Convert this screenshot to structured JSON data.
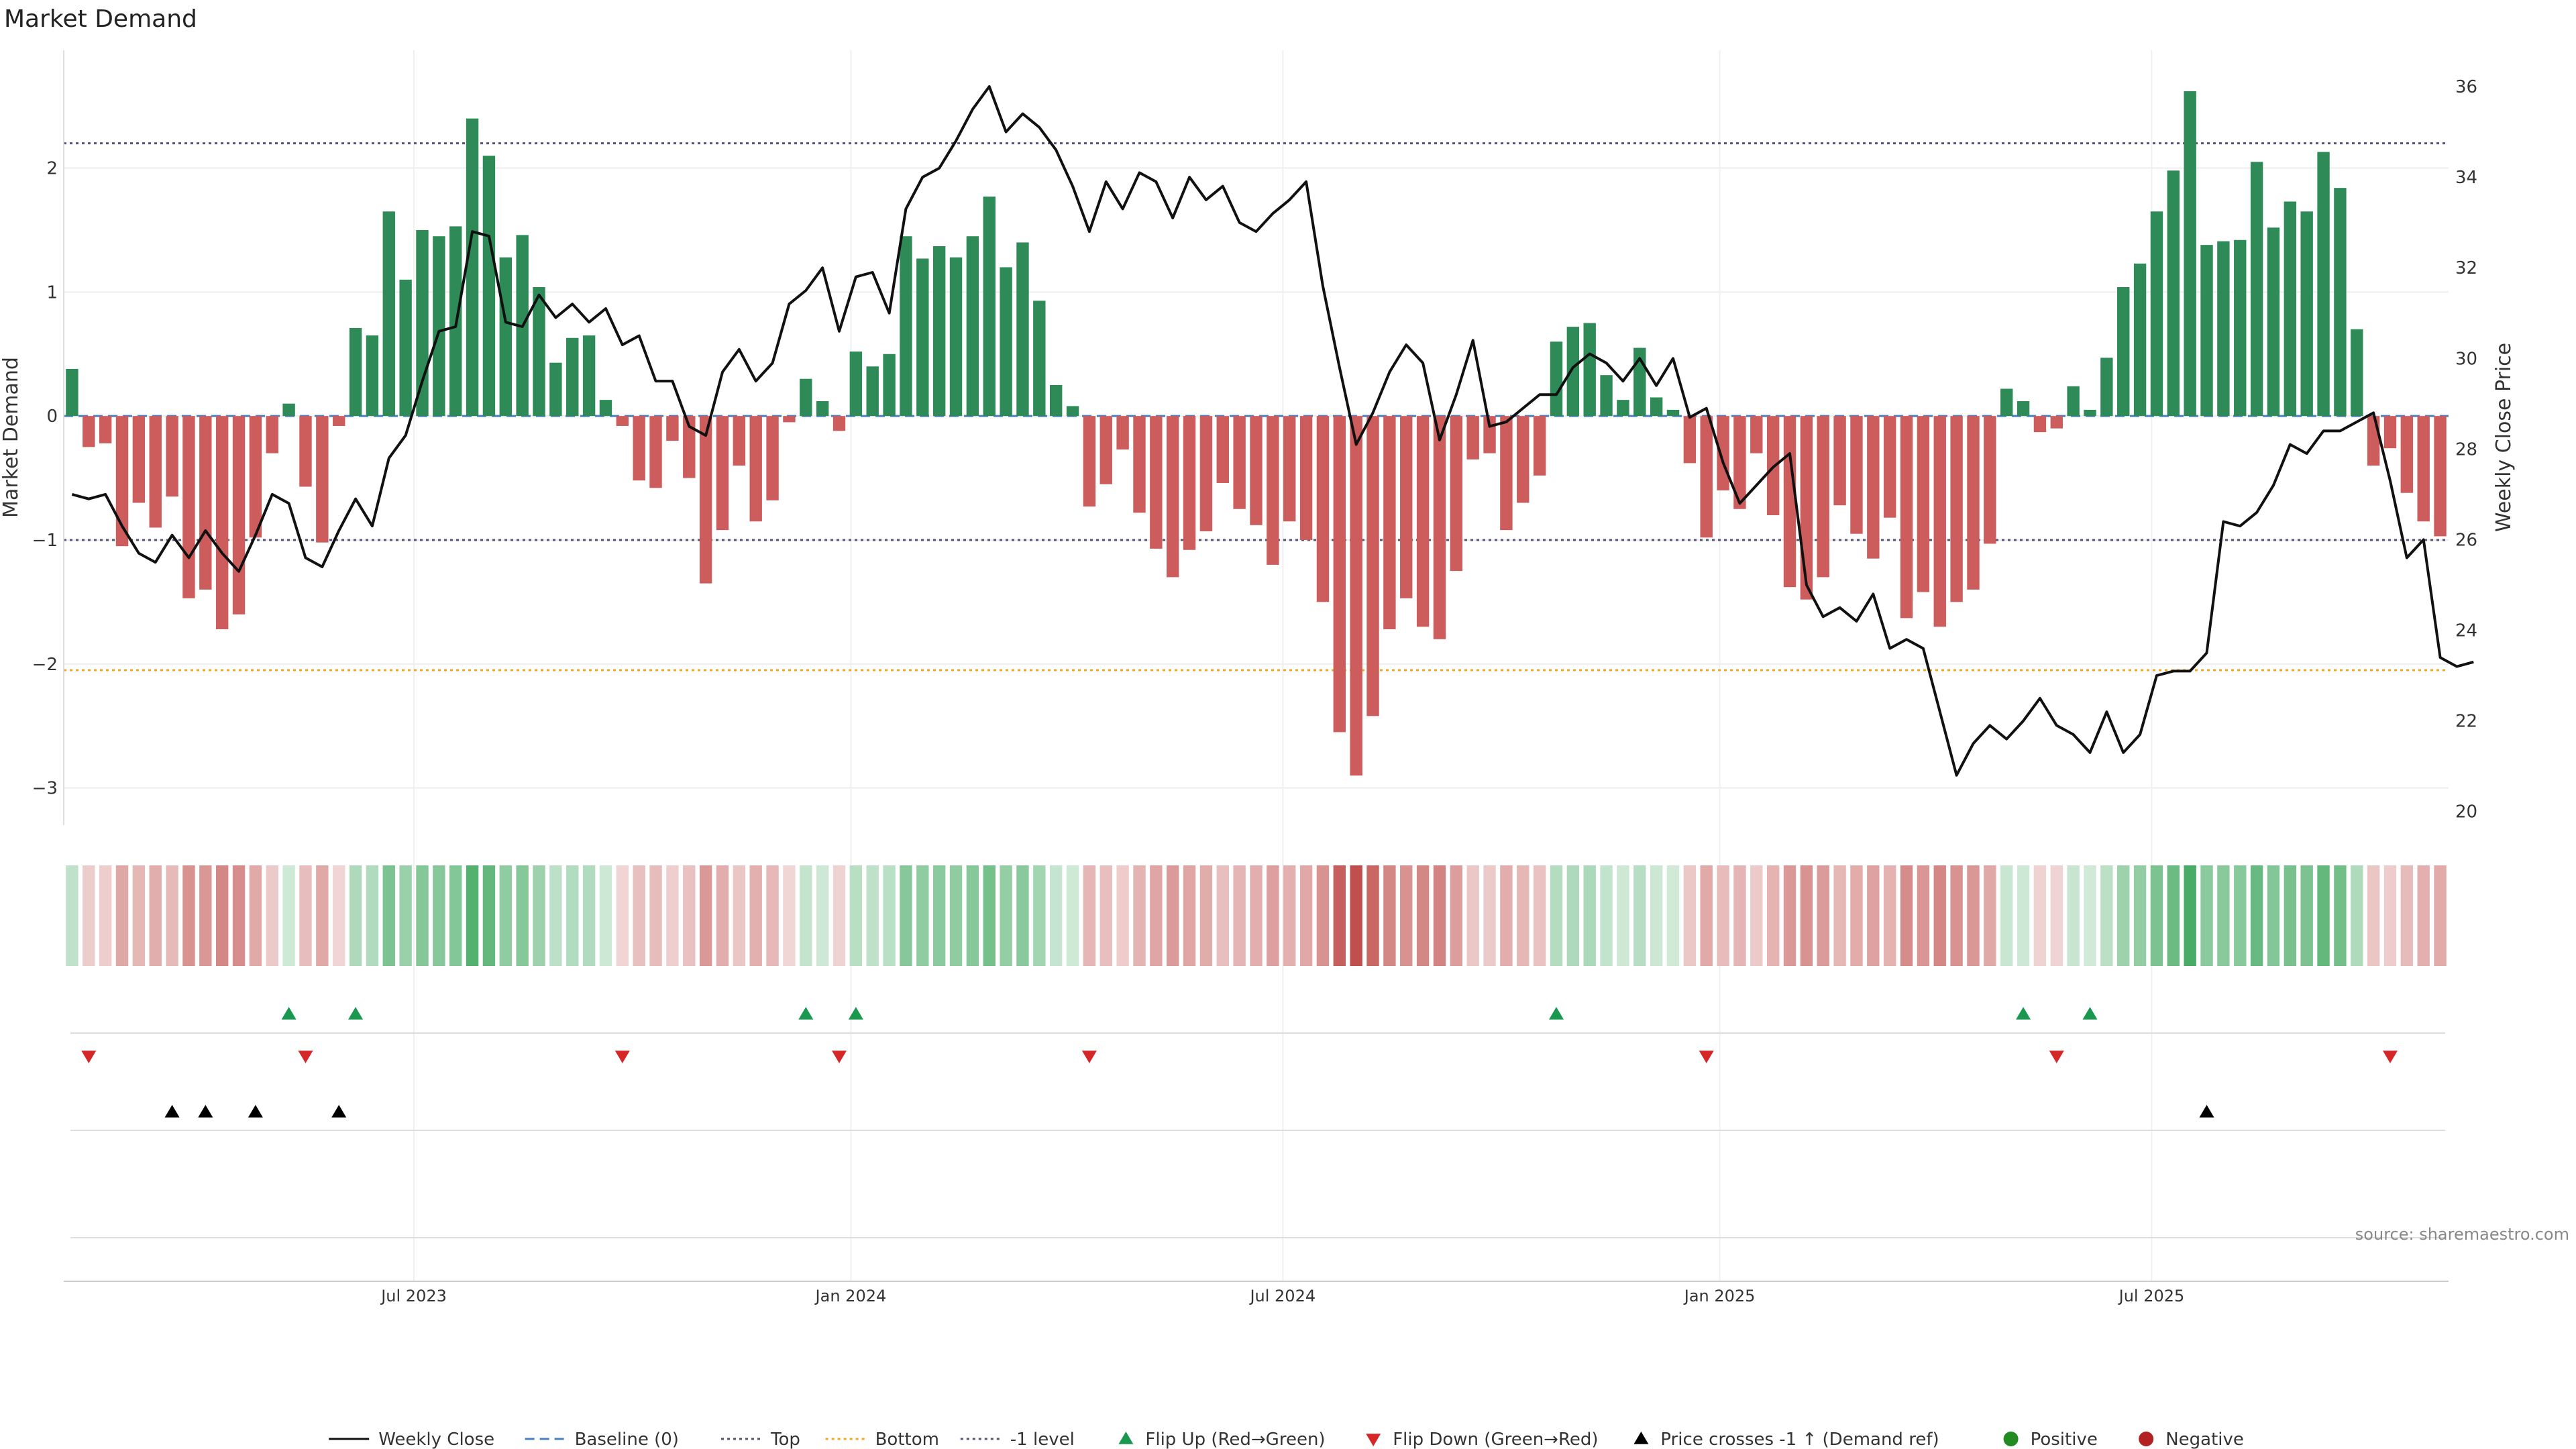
{
  "chart_data": {
    "type": "bar",
    "title": "Market Demand",
    "ylabel": "Market Demand",
    "y2label": "Weekly Close Price",
    "ylim": [
      -3.3,
      2.95
    ],
    "y2lim": [
      19.7,
      36.8
    ],
    "yticks": [
      2,
      1,
      0,
      -1,
      -2,
      -3
    ],
    "ytick_labels": [
      "2",
      "1",
      "0",
      "−1",
      "−2",
      "−3"
    ],
    "y2ticks": [
      36,
      34,
      32,
      30,
      28,
      26,
      24,
      22,
      20
    ],
    "xticks": [
      {
        "index": 20.5,
        "label": "Jul 2023"
      },
      {
        "index": 46.7,
        "label": "Jan 2024"
      },
      {
        "index": 72.6,
        "label": "Jul 2024"
      },
      {
        "index": 98.8,
        "label": "Jan 2025"
      },
      {
        "index": 124.7,
        "label": "Jul 2025"
      }
    ],
    "ref_lines": {
      "top": 2.2,
      "bottom": -2.05,
      "minus_one": -1,
      "baseline": 0
    },
    "colors": {
      "positive": "#2e8b57",
      "negative": "#cd5c5c",
      "price": "#111111",
      "flip_up": "#1a9850",
      "flip_down": "#d62728",
      "bottom_line": "#f5a623",
      "ref_line": "#555577",
      "baseline": "#4a7fc1"
    },
    "demand": [
      0.38,
      -0.25,
      -0.22,
      -1.05,
      -0.7,
      -0.9,
      -0.65,
      -1.47,
      -1.4,
      -1.72,
      -1.6,
      -0.98,
      -0.3,
      0.1,
      -0.57,
      -1.02,
      -0.08,
      0.71,
      0.65,
      1.65,
      1.1,
      1.5,
      1.45,
      1.53,
      2.4,
      2.1,
      1.28,
      1.46,
      1.04,
      0.43,
      0.63,
      0.65,
      0.13,
      -0.08,
      -0.52,
      -0.58,
      -0.2,
      -0.5,
      -1.35,
      -0.92,
      -0.4,
      -0.85,
      -0.68,
      -0.05,
      0.3,
      0.12,
      -0.12,
      0.52,
      0.4,
      0.5,
      1.45,
      1.27,
      1.37,
      1.28,
      1.45,
      1.77,
      1.2,
      1.4,
      0.93,
      0.25,
      0.08,
      -0.73,
      -0.55,
      -0.27,
      -0.78,
      -1.07,
      -1.3,
      -1.08,
      -0.93,
      -0.54,
      -0.75,
      -0.88,
      -1.2,
      -0.85,
      -1.0,
      -1.5,
      -2.55,
      -2.9,
      -2.42,
      -1.72,
      -1.47,
      -1.7,
      -1.8,
      -1.25,
      -0.35,
      -0.3,
      -0.92,
      -0.7,
      -0.48,
      0.6,
      0.72,
      0.75,
      0.33,
      0.13,
      0.55,
      0.15,
      0.05,
      -0.38,
      -0.98,
      -0.6,
      -0.75,
      -0.3,
      -0.8,
      -1.38,
      -1.48,
      -1.3,
      -0.72,
      -0.95,
      -1.15,
      -0.82,
      -1.63,
      -1.42,
      -1.7,
      -1.5,
      -1.4,
      -1.03,
      0.22,
      0.12,
      -0.13,
      -0.1,
      0.24,
      0.05,
      0.47,
      1.04,
      1.23,
      1.65,
      1.98,
      2.62,
      1.38,
      1.41,
      1.42,
      2.05,
      1.52,
      1.73,
      1.65,
      2.13,
      1.84,
      0.7,
      -0.4,
      -0.26,
      -0.62,
      -0.85,
      -0.97
    ],
    "price": [
      27.0,
      26.9,
      27.0,
      26.3,
      25.7,
      25.5,
      26.1,
      25.6,
      26.2,
      25.7,
      25.3,
      26.1,
      27.0,
      26.8,
      25.6,
      25.4,
      26.2,
      26.9,
      26.3,
      27.8,
      28.3,
      29.5,
      30.6,
      30.7,
      32.8,
      32.7,
      30.8,
      30.7,
      31.4,
      30.9,
      31.2,
      30.8,
      31.1,
      30.3,
      30.5,
      29.5,
      29.5,
      28.5,
      28.3,
      29.7,
      30.2,
      29.5,
      29.9,
      31.2,
      31.5,
      32.0,
      30.6,
      31.8,
      31.9,
      31.0,
      33.3,
      34.0,
      34.2,
      34.8,
      35.5,
      36.0,
      35.0,
      35.4,
      35.1,
      34.6,
      33.8,
      32.8,
      33.9,
      33.3,
      34.1,
      33.9,
      33.1,
      34.0,
      33.5,
      33.8,
      33.0,
      32.8,
      33.2,
      33.5,
      33.9,
      31.6,
      29.8,
      28.1,
      28.8,
      29.7,
      30.3,
      29.9,
      28.2,
      29.2,
      30.4,
      28.5,
      28.6,
      28.9,
      29.2,
      29.2,
      29.8,
      30.1,
      29.9,
      29.5,
      30.0,
      29.4,
      30.0,
      28.7,
      28.9,
      27.7,
      26.8,
      27.2,
      27.6,
      27.9,
      25.0,
      24.3,
      24.5,
      24.2,
      24.8,
      23.6,
      23.8,
      23.6,
      22.2,
      20.8,
      21.5,
      21.9,
      21.6,
      22.0,
      22.5,
      21.9,
      21.7,
      21.3,
      22.2,
      21.3,
      21.7,
      23.0,
      23.1,
      23.1,
      23.5,
      26.4,
      26.3,
      26.6,
      27.2,
      28.1,
      27.9,
      28.4,
      28.4,
      28.6,
      28.8,
      27.3,
      25.6,
      26.0,
      23.4,
      23.2,
      23.3
    ],
    "flip_up": [
      13,
      17,
      44,
      47,
      89,
      117,
      121
    ],
    "flip_down": [
      1,
      14,
      33,
      46,
      61,
      98,
      119,
      139
    ],
    "price_cross": [
      6,
      8,
      11,
      16,
      128
    ],
    "source": "source: sharemaestro.com",
    "legend": [
      "Weekly Close",
      "Baseline (0)",
      "Top",
      "Bottom",
      "-1 level",
      "Flip Up (Red→Green)",
      "Flip Down (Green→Red)",
      "Price crosses -1 ↑ (Demand ref)",
      "Positive",
      "Negative"
    ]
  }
}
